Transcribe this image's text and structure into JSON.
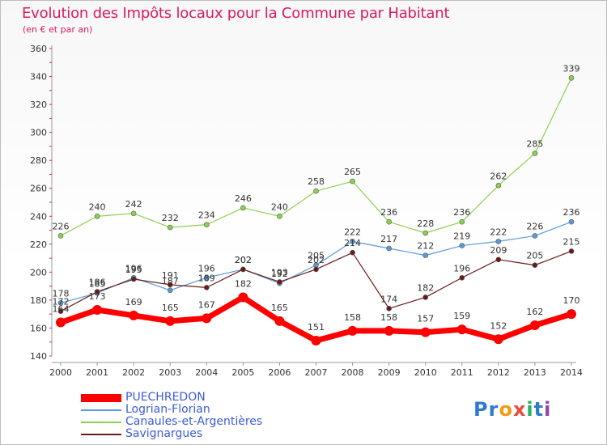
{
  "title": "Evolution des Impôts locaux pour la Commune par Habitant",
  "subtitle": "(en € et par an)",
  "logo": {
    "text": "Proxiti",
    "letters": [
      "P",
      "r",
      "o",
      "x",
      "i",
      "t",
      "i"
    ],
    "colors": [
      "#2e7bcf",
      "#2e7bcf",
      "#f39c12",
      "#e74c3c",
      "#27ae60",
      "#2e7bcf",
      "#8e44ad"
    ]
  },
  "chart_data": {
    "type": "line",
    "x": [
      "2000",
      "2001",
      "2002",
      "2003",
      "2004",
      "2005",
      "2006",
      "2007",
      "2008",
      "2009",
      "2010",
      "2011",
      "2012",
      "2013",
      "2014"
    ],
    "ylim": [
      140,
      360
    ],
    "yticks": [
      140,
      160,
      180,
      200,
      220,
      240,
      260,
      280,
      300,
      320,
      340,
      360
    ],
    "grid": false,
    "legend_position": "bottom-left",
    "series": [
      {
        "name": "Logrian-Florian",
        "color": "#5b9bd5",
        "values": [
          178,
          185,
          196,
          187,
          196,
          202,
          192,
          205,
          222,
          217,
          212,
          219,
          222,
          226,
          236
        ],
        "labels": [
          "178",
          "185",
          "196",
          "187",
          "196",
          "202",
          "192",
          "205",
          "222",
          "217",
          "212",
          "219",
          "222",
          "226",
          "236"
        ]
      },
      {
        "name": "Savignargues",
        "color": "#6b1a1a",
        "values": [
          172,
          186,
          195,
          191,
          189,
          202,
          193,
          202,
          214,
          174,
          182,
          196,
          209,
          205,
          215
        ],
        "labels": [
          "172",
          "186",
          "195",
          "191",
          "189",
          "202",
          "193",
          "202",
          "214",
          "174",
          "182",
          "196",
          "209",
          "205",
          "215"
        ]
      },
      {
        "name": "Canaules-et-Argentières",
        "color": "#8bd14f",
        "values": [
          226,
          240,
          242,
          232,
          234,
          246,
          240,
          258,
          265,
          236,
          228,
          236,
          262,
          285,
          339
        ],
        "labels": [
          "226",
          "240",
          "242",
          "232",
          "234",
          "246",
          "240",
          "258",
          "265",
          "236",
          "228",
          "236",
          "262",
          "285",
          "339"
        ]
      },
      {
        "name": "PUECHREDON",
        "color": "#ff0000",
        "values": [
          164,
          173,
          169,
          165,
          167,
          182,
          165,
          151,
          158,
          158,
          157,
          159,
          152,
          162,
          170
        ],
        "labels": [
          "164",
          "173",
          "169",
          "165",
          "167",
          "182",
          "165",
          "151",
          "158",
          "158",
          "157",
          "159",
          "152",
          "162",
          "170"
        ]
      }
    ],
    "legend_order": [
      "PUECHREDON",
      "Logrian-Florian",
      "Canaules-et-Argentières",
      "Savignargues"
    ]
  }
}
